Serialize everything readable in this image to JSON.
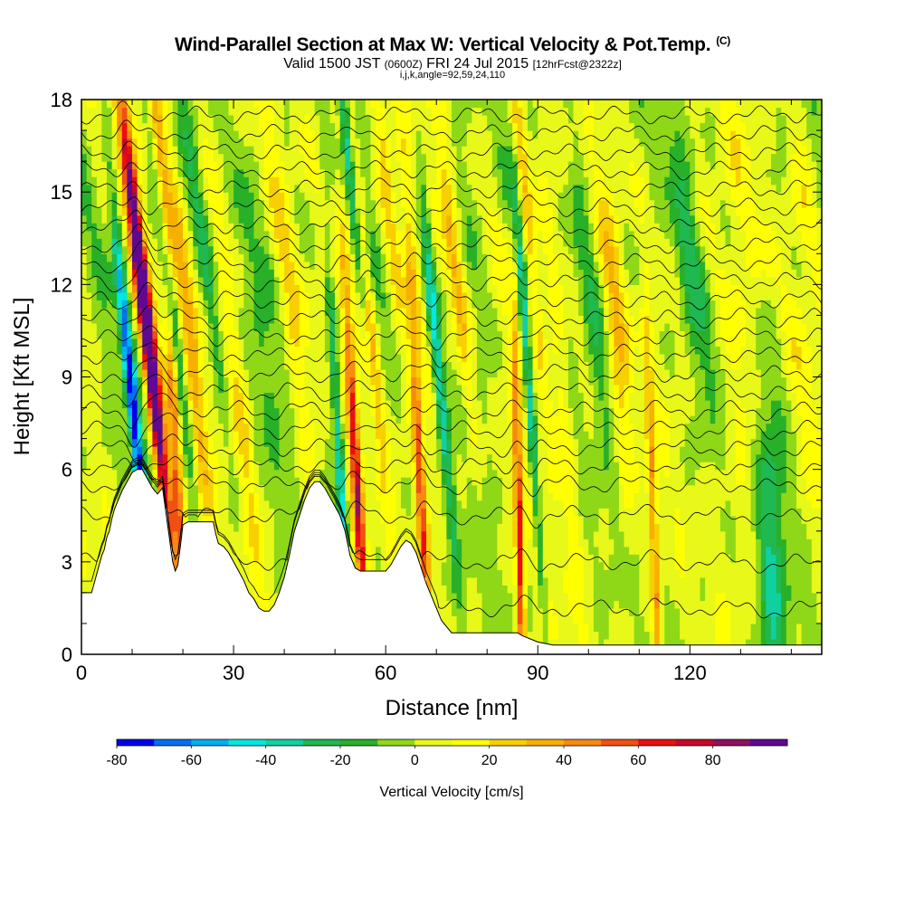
{
  "titles": {
    "main": "Wind-Parallel Section at Max W: Vertical Velocity & Pot.Temp.",
    "copyright": "(C)",
    "valid_prefix": "Valid 1500 JST",
    "valid_utc": "(0600Z)",
    "valid_date": "FRI 24 Jul 2015",
    "forecast": "[12hrFcst@2322z]",
    "indices": "i,j,k,angle=92,59,24,110"
  },
  "chart_data": {
    "type": "heatmap",
    "title": "Wind-Parallel Section at Max W: Vertical Velocity & Pot.Temp.",
    "xlabel": "Distance [nm]",
    "ylabel": "Height [Kft MSL]",
    "xlim": [
      0,
      146
    ],
    "ylim": [
      0,
      18
    ],
    "x_ticks": [
      "0",
      "30",
      "60",
      "90",
      "120"
    ],
    "y_ticks": [
      "0",
      "3",
      "6",
      "9",
      "12",
      "15",
      "18"
    ],
    "colorbar": {
      "label": "Vertical Velocity [cm/s]",
      "tick_labels": [
        "-80",
        "-60",
        "-40",
        "-20",
        "0",
        "20",
        "40",
        "60",
        "80"
      ],
      "levels": [
        -80,
        -70,
        -60,
        -50,
        -40,
        -30,
        -20,
        -10,
        0,
        10,
        20,
        30,
        40,
        50,
        60,
        70,
        80,
        90
      ],
      "colors": [
        "#0000ee",
        "#0070f0",
        "#00b0f0",
        "#00e8e0",
        "#10d0a0",
        "#20b850",
        "#28b028",
        "#8ed818",
        "#e8f818",
        "#ffff00",
        "#f8d000",
        "#f8b000",
        "#f88a10",
        "#f05010",
        "#e81010",
        "#c80828",
        "#901060",
        "#600890"
      ]
    },
    "terrain_kft": [
      [
        0,
        2
      ],
      [
        2,
        2
      ],
      [
        2.5,
        2.3
      ],
      [
        3,
        2.6
      ],
      [
        3.5,
        2.9
      ],
      [
        4,
        3.2
      ],
      [
        4.5,
        3.4
      ],
      [
        5,
        3.8
      ],
      [
        5.5,
        4.0
      ],
      [
        6,
        4.4
      ],
      [
        6.5,
        4.7
      ],
      [
        7,
        4.9
      ],
      [
        7.5,
        5.1
      ],
      [
        8,
        5.3
      ],
      [
        9,
        5.6
      ],
      [
        10,
        5.9
      ],
      [
        11,
        6.0
      ],
      [
        12,
        6.0
      ],
      [
        13,
        5.7
      ],
      [
        14,
        5.4
      ],
      [
        15,
        5.2
      ],
      [
        16,
        5.4
      ],
      [
        17,
        4.2
      ],
      [
        17.5,
        3.6
      ],
      [
        18,
        3.0
      ],
      [
        18.5,
        2.7
      ],
      [
        19,
        2.9
      ],
      [
        19.5,
        3.5
      ],
      [
        20,
        4.2
      ],
      [
        21,
        4.3
      ],
      [
        24,
        4.3
      ],
      [
        26,
        4.3
      ],
      [
        26.5,
        3.9
      ],
      [
        27,
        3.6
      ],
      [
        28,
        3.5
      ],
      [
        29,
        3.3
      ],
      [
        30,
        3.0
      ],
      [
        31,
        2.7
      ],
      [
        32,
        2.4
      ],
      [
        33,
        2.0
      ],
      [
        34,
        1.8
      ],
      [
        35,
        1.5
      ],
      [
        36,
        1.4
      ],
      [
        37,
        1.4
      ],
      [
        38,
        1.6
      ],
      [
        39,
        2.0
      ],
      [
        40,
        2.5
      ],
      [
        41,
        3.2
      ],
      [
        42,
        4.0
      ],
      [
        43,
        4.5
      ],
      [
        44,
        5.0
      ],
      [
        45,
        5.4
      ],
      [
        46,
        5.6
      ],
      [
        47,
        5.6
      ],
      [
        48,
        5.4
      ],
      [
        49,
        5.1
      ],
      [
        50,
        4.8
      ],
      [
        51,
        4.5
      ],
      [
        52,
        4.0
      ],
      [
        53,
        3.2
      ],
      [
        54,
        2.8
      ],
      [
        55,
        2.7
      ],
      [
        58,
        2.7
      ],
      [
        60,
        2.7
      ],
      [
        61,
        2.9
      ],
      [
        62,
        3.2
      ],
      [
        63,
        3.5
      ],
      [
        64,
        3.7
      ],
      [
        65,
        3.6
      ],
      [
        66,
        3.3
      ],
      [
        67,
        2.8
      ],
      [
        68,
        2.3
      ],
      [
        69,
        1.9
      ],
      [
        70,
        1.5
      ],
      [
        71,
        1.1
      ],
      [
        72,
        0.9
      ],
      [
        73,
        0.7
      ],
      [
        75,
        0.7
      ],
      [
        86,
        0.7
      ],
      [
        87,
        0.6
      ],
      [
        90,
        0.4
      ],
      [
        93,
        0.3
      ],
      [
        146,
        0.3
      ]
    ],
    "updrafts": [
      {
        "x0": 13.5,
        "z0": 9.5,
        "slope": -0.65,
        "amp": 88,
        "width": 1.2
      },
      {
        "x0": 12.0,
        "z0": 12.0,
        "slope": -0.75,
        "amp": 55,
        "width": 1.5
      },
      {
        "x0": 15.0,
        "z0": 16.0,
        "slope": -0.55,
        "amp": 40,
        "width": 1.5
      },
      {
        "x0": 10.5,
        "z0": 7.5,
        "slope": -0.6,
        "amp": -80,
        "width": 1.1
      },
      {
        "x0": 16.5,
        "z0": 13.0,
        "slope": -0.7,
        "amp": -48,
        "width": 1.2
      },
      {
        "x0": 19.0,
        "z0": 5.0,
        "slope": -0.3,
        "amp": 45,
        "width": 1.0
      },
      {
        "x0": 22.0,
        "z0": 9.0,
        "slope": -0.6,
        "amp": 25,
        "width": 1.5
      },
      {
        "x0": 25.0,
        "z0": 12.0,
        "slope": -0.8,
        "amp": -18,
        "width": 1.4
      },
      {
        "x0": 30.0,
        "z0": 10.0,
        "slope": -0.7,
        "amp": 22,
        "width": 1.8
      },
      {
        "x0": 36.0,
        "z0": 9.5,
        "slope": -0.8,
        "amp": -15,
        "width": 1.8
      },
      {
        "x0": 43.0,
        "z0": 8.0,
        "slope": -0.7,
        "amp": 18,
        "width": 2.0
      },
      {
        "x0": 54.5,
        "z0": 5.0,
        "slope": -0.35,
        "amp": 72,
        "width": 1.0
      },
      {
        "x0": 51.0,
        "z0": 6.0,
        "slope": -0.35,
        "amp": -45,
        "width": 0.9
      },
      {
        "x0": 56.0,
        "z0": 12.0,
        "slope": -0.55,
        "amp": 35,
        "width": 1.2
      },
      {
        "x0": 53.5,
        "z0": 15.0,
        "slope": -0.6,
        "amp": -40,
        "width": 1.0
      },
      {
        "x0": 60.0,
        "z0": 15.5,
        "slope": -0.6,
        "amp": 20,
        "width": 1.6
      },
      {
        "x0": 67.0,
        "z0": 5.0,
        "slope": -0.3,
        "amp": 55,
        "width": 1.0
      },
      {
        "x0": 70.0,
        "z0": 10.0,
        "slope": -0.55,
        "amp": -42,
        "width": 1.1
      },
      {
        "x0": 66.0,
        "z0": 12.0,
        "slope": -0.7,
        "amp": 25,
        "width": 1.5
      },
      {
        "x0": 74.0,
        "z0": 12.0,
        "slope": -0.7,
        "amp": 22,
        "width": 1.5
      },
      {
        "x0": 78.0,
        "z0": 10.0,
        "slope": -0.6,
        "amp": -15,
        "width": 1.8
      },
      {
        "x0": 86.5,
        "z0": 3.0,
        "slope": -0.15,
        "amp": 65,
        "width": 0.8
      },
      {
        "x0": 88.5,
        "z0": 8.0,
        "slope": -0.4,
        "amp": -42,
        "width": 0.8
      },
      {
        "x0": 88.0,
        "z0": 14.0,
        "slope": -0.6,
        "amp": 30,
        "width": 1.3
      },
      {
        "x0": 94.0,
        "z0": 10.0,
        "slope": -0.55,
        "amp": 20,
        "width": 1.6
      },
      {
        "x0": 100.0,
        "z0": 13.0,
        "slope": -0.6,
        "amp": -15,
        "width": 2.0
      },
      {
        "x0": 106.0,
        "z0": 9.0,
        "slope": -0.3,
        "amp": 20,
        "width": 2.0
      },
      {
        "x0": 113.0,
        "z0": 3.5,
        "slope": -0.2,
        "amp": 42,
        "width": 0.9
      },
      {
        "x0": 120.0,
        "z0": 12.0,
        "slope": -0.4,
        "amp": -14,
        "width": 2.5
      },
      {
        "x0": 130.0,
        "z0": 9.0,
        "slope": -0.3,
        "amp": 15,
        "width": 3.0
      },
      {
        "x0": 136.0,
        "z0": 2.5,
        "slope": 0.0,
        "amp": -28,
        "width": 3.0
      },
      {
        "x0": 142.0,
        "z0": 14.0,
        "slope": -0.3,
        "amp": 12,
        "width": 2.5
      }
    ],
    "isentrope_levels_kft": [
      1.5,
      3.0,
      4.5,
      5.5,
      6.1,
      6.7,
      7.3,
      7.9,
      8.5,
      9.1,
      9.7,
      10.3,
      10.9,
      11.5,
      12.1,
      12.7,
      13.3,
      13.9,
      14.5,
      15.1,
      15.7,
      16.3,
      16.9,
      17.5
    ]
  }
}
